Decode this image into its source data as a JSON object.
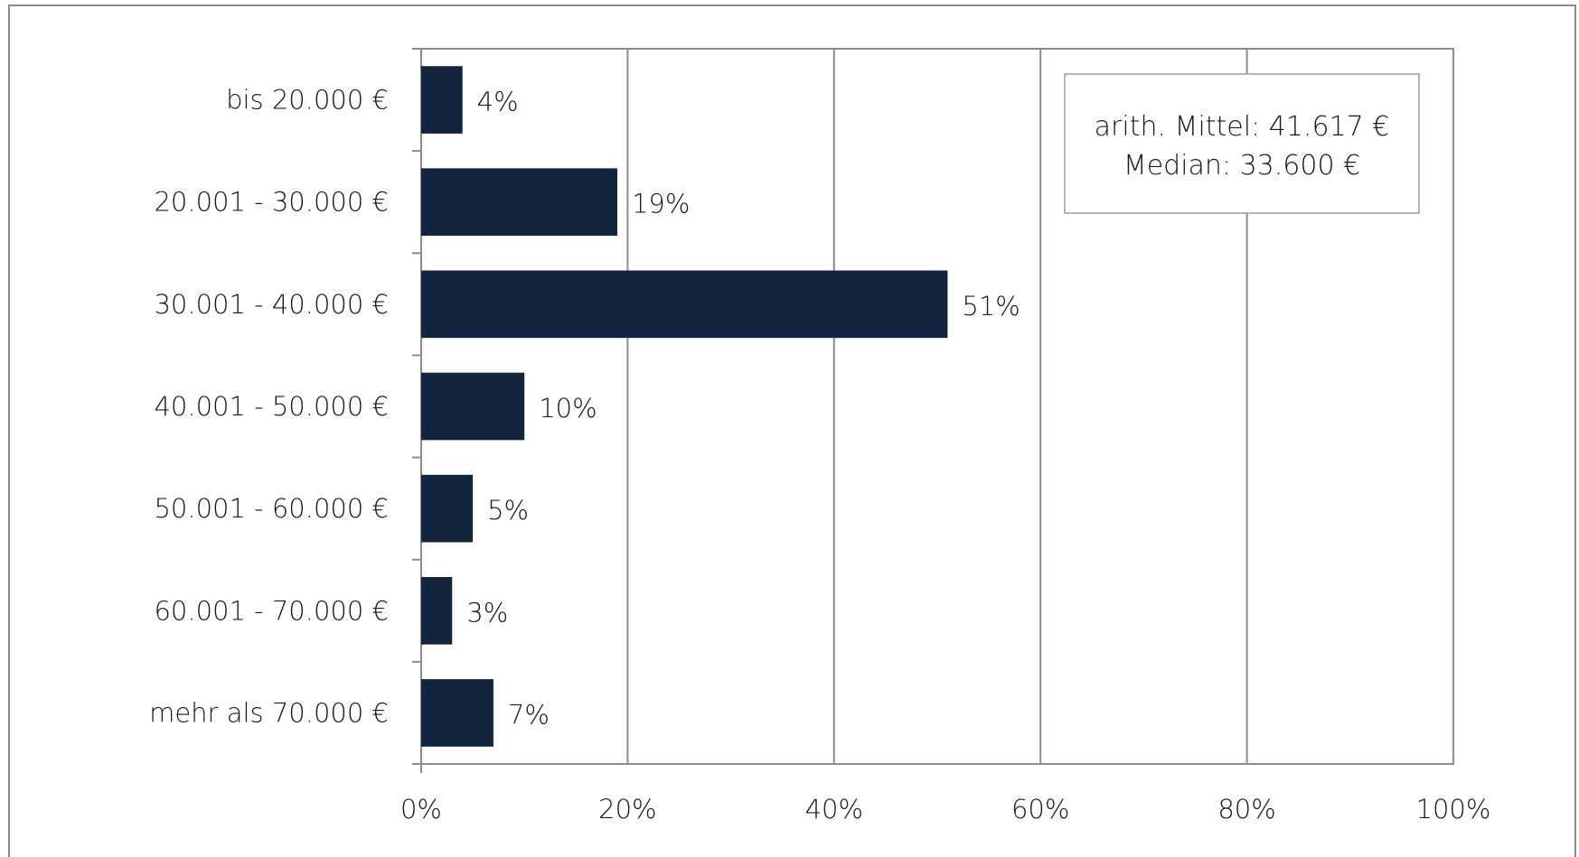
{
  "chart_data": {
    "type": "bar",
    "orientation": "horizontal",
    "categories": [
      "bis 20.000 €",
      "20.001 - 30.000 €",
      "30.001 - 40.000 €",
      "40.001 - 50.000 €",
      "50.001 - 60.000 €",
      "60.001 - 70.000 €",
      "mehr als 70.000 €"
    ],
    "values": [
      4,
      19,
      51,
      10,
      5,
      3,
      7
    ],
    "value_labels": [
      "4%",
      "19%",
      "51%",
      "10%",
      "5%",
      "3%",
      "7%"
    ],
    "x_ticks": [
      "0%",
      "20%",
      "40%",
      "60%",
      "80%",
      "100%"
    ],
    "xlim": [
      0,
      100
    ],
    "grid": true,
    "bar_color": "#13243f",
    "title": "",
    "xlabel": "",
    "ylabel": "",
    "annotation": {
      "line1": "arith. Mittel: 41.617 €",
      "line2": "Median: 33.600 €",
      "placement": "top-right"
    }
  }
}
